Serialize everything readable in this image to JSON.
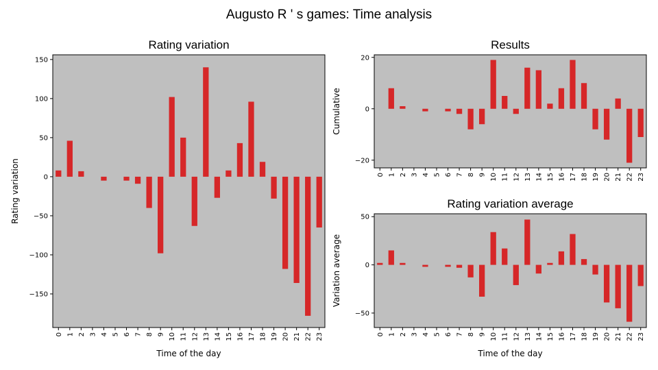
{
  "figure": {
    "title": "Augusto R ' s  games: Time analysis"
  },
  "chart_data": [
    {
      "id": "rating",
      "type": "bar",
      "title": "Rating variation",
      "xlabel": "Time of the day",
      "ylabel": "Rating variation",
      "ylim": [
        -193,
        156
      ],
      "yticks": [
        150,
        100,
        50,
        0,
        -50,
        -100,
        -150
      ],
      "categories": [
        "0",
        "1",
        "2",
        "3",
        "4",
        "5",
        "6",
        "7",
        "8",
        "9",
        "10",
        "11",
        "12",
        "13",
        "14",
        "15",
        "16",
        "17",
        "18",
        "19",
        "20",
        "21",
        "22",
        "23"
      ],
      "values": [
        8,
        46,
        7,
        0,
        -5,
        0,
        -5,
        -9,
        -40,
        -98,
        102,
        50,
        -63,
        140,
        -27,
        8,
        43,
        96,
        19,
        -28,
        -118,
        -136,
        -178,
        -65
      ],
      "bar_color": "#d62728",
      "background": "#bfbfbf",
      "grid": false
    },
    {
      "id": "results",
      "type": "bar",
      "title": "Results",
      "xlabel": "",
      "ylabel": "Cumulative",
      "ylim": [
        -23,
        21
      ],
      "yticks": [
        20,
        0,
        -20
      ],
      "categories": [
        "0",
        "1",
        "2",
        "3",
        "4",
        "5",
        "6",
        "7",
        "8",
        "9",
        "10",
        "11",
        "12",
        "13",
        "14",
        "15",
        "16",
        "17",
        "18",
        "19",
        "20",
        "21",
        "22",
        "23"
      ],
      "values": [
        0,
        8,
        1,
        0,
        -1,
        0,
        -1,
        -2,
        -8,
        -6,
        19,
        5,
        -2,
        16,
        15,
        2,
        8,
        19,
        10,
        -8,
        -12,
        4,
        -21,
        -11
      ],
      "bar_color": "#d62728",
      "background": "#bfbfbf",
      "grid": false
    },
    {
      "id": "average",
      "type": "bar",
      "title": "Rating variation average",
      "xlabel": "Time of the day",
      "ylabel": "Variation average",
      "ylim": [
        -65,
        53
      ],
      "yticks": [
        50,
        0,
        -50
      ],
      "categories": [
        "0",
        "1",
        "2",
        "3",
        "4",
        "5",
        "6",
        "7",
        "8",
        "9",
        "10",
        "11",
        "12",
        "13",
        "14",
        "15",
        "16",
        "17",
        "18",
        "19",
        "20",
        "21",
        "22",
        "23"
      ],
      "values": [
        2,
        15,
        2,
        0,
        -2,
        0,
        -2,
        -3,
        -13,
        -33,
        34,
        17,
        -21,
        47,
        -9,
        2,
        14,
        32,
        6,
        -10,
        -39,
        -45,
        -59,
        -22
      ],
      "bar_color": "#d62728",
      "background": "#bfbfbf",
      "grid": false
    }
  ]
}
